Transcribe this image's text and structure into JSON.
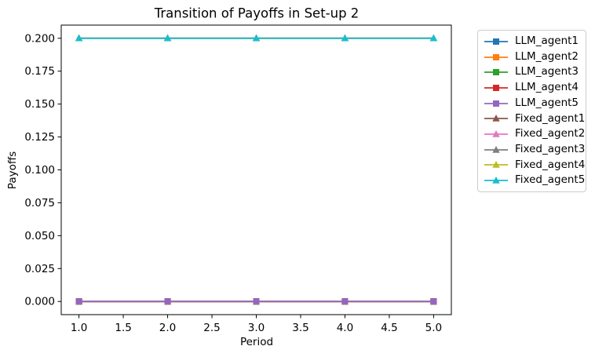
{
  "chart_data": {
    "type": "line",
    "title": "Transition of Payoffs in Set-up 2",
    "xlabel": "Period",
    "ylabel": "Payoffs",
    "x": [
      1.0,
      2.0,
      3.0,
      4.0,
      5.0
    ],
    "series": [
      {
        "name": "LLM_agent1",
        "color": "#1f77b4",
        "marker": "square",
        "values": [
          0.0,
          0.0,
          0.0,
          0.0,
          0.0
        ]
      },
      {
        "name": "LLM_agent2",
        "color": "#ff7f0e",
        "marker": "square",
        "values": [
          0.0,
          0.0,
          0.0,
          0.0,
          0.0
        ]
      },
      {
        "name": "LLM_agent3",
        "color": "#2ca02c",
        "marker": "square",
        "values": [
          0.0,
          0.0,
          0.0,
          0.0,
          0.0
        ]
      },
      {
        "name": "LLM_agent4",
        "color": "#d62728",
        "marker": "square",
        "values": [
          0.0,
          0.0,
          0.0,
          0.0,
          0.0
        ]
      },
      {
        "name": "LLM_agent5",
        "color": "#9467bd",
        "marker": "square",
        "values": [
          0.0,
          0.0,
          0.0,
          0.0,
          0.0
        ]
      },
      {
        "name": "Fixed_agent1",
        "color": "#8c564b",
        "marker": "triangle",
        "values": [
          0.2,
          0.2,
          0.2,
          0.2,
          0.2
        ]
      },
      {
        "name": "Fixed_agent2",
        "color": "#e377c2",
        "marker": "triangle",
        "values": [
          0.2,
          0.2,
          0.2,
          0.2,
          0.2
        ]
      },
      {
        "name": "Fixed_agent3",
        "color": "#7f7f7f",
        "marker": "triangle",
        "values": [
          0.2,
          0.2,
          0.2,
          0.2,
          0.2
        ]
      },
      {
        "name": "Fixed_agent4",
        "color": "#bcbd22",
        "marker": "triangle",
        "values": [
          0.2,
          0.2,
          0.2,
          0.2,
          0.2
        ]
      },
      {
        "name": "Fixed_agent5",
        "color": "#17becf",
        "marker": "triangle",
        "values": [
          0.2,
          0.2,
          0.2,
          0.2,
          0.2
        ]
      }
    ],
    "xticks": [
      1.0,
      1.5,
      2.0,
      2.5,
      3.0,
      3.5,
      4.0,
      4.5,
      5.0
    ],
    "xtick_labels": [
      "1.0",
      "1.5",
      "2.0",
      "2.5",
      "3.0",
      "3.5",
      "4.0",
      "4.5",
      "5.0"
    ],
    "yticks": [
      0.0,
      0.025,
      0.05,
      0.075,
      0.1,
      0.125,
      0.15,
      0.175,
      0.2
    ],
    "ytick_labels": [
      "0.000",
      "0.025",
      "0.050",
      "0.075",
      "0.100",
      "0.125",
      "0.150",
      "0.175",
      "0.200"
    ],
    "xlim": [
      0.8,
      5.2
    ],
    "ylim": [
      -0.01,
      0.21
    ],
    "grid": false,
    "legend_position": "outside-right",
    "colors": {
      "axes": "#000000",
      "text": "#000000",
      "legend_border": "#cccccc",
      "background": "#ffffff"
    }
  }
}
